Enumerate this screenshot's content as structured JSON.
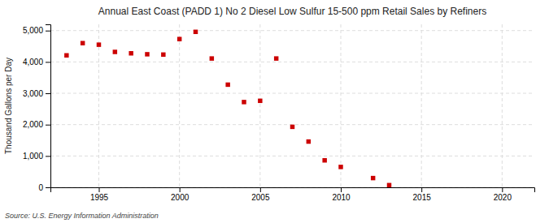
{
  "chart_data": {
    "type": "scatter",
    "title": "Annual East Coast (PADD 1) No 2 Diesel Low Sulfur 15-500 ppm Retail Sales by Refiners",
    "ylabel": "Thousand Gallons per Day",
    "source": "Source: U.S. Energy Information Administration",
    "x": [
      1993,
      1994,
      1995,
      1996,
      1997,
      1998,
      1999,
      2000,
      2001,
      2002,
      2003,
      2004,
      2005,
      2006,
      2007,
      2008,
      2009,
      2010,
      2012,
      2013
    ],
    "values": [
      4210,
      4600,
      4550,
      4320,
      4275,
      4245,
      4235,
      4730,
      4960,
      4110,
      3275,
      2720,
      2760,
      4110,
      1930,
      1460,
      860,
      650,
      295,
      70
    ],
    "color": "#cc0000",
    "marker": "square",
    "xlim": [
      1992,
      2022
    ],
    "ylim": [
      0,
      5200
    ],
    "xticks": [
      1995,
      2000,
      2005,
      2010,
      2015,
      2020
    ],
    "yticks": [
      0,
      {
        "value": 1000,
        "label": "1,000"
      },
      {
        "value": 2000,
        "label": "2,000"
      },
      {
        "value": 3000,
        "label": "3,000"
      },
      {
        "value": 4000,
        "label": "4,000"
      },
      {
        "value": 5000,
        "label": "5,000"
      }
    ],
    "grid": true
  }
}
